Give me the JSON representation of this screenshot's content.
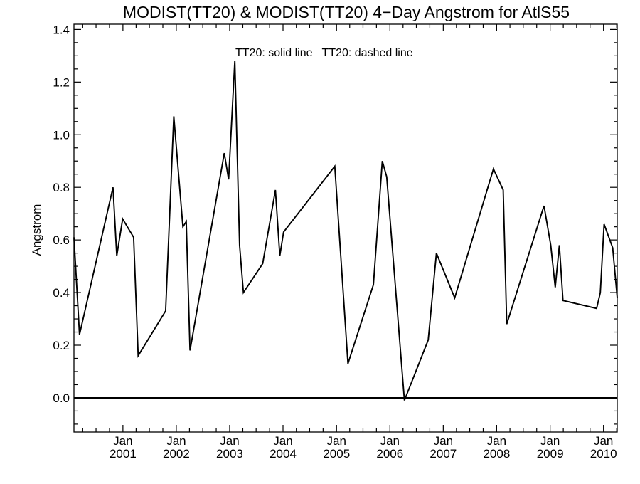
{
  "chart_data": {
    "type": "line",
    "title": "MODIST(TT20) & MODIST(TT20) 4−Day Angstrom for AtlS55",
    "xlabel": "",
    "ylabel": "Angstrom",
    "annotation": "TT20: solid line   TT20: dashed line",
    "xlim": [
      "2000-02-01",
      "2010-04-05"
    ],
    "ylim": [
      -0.13,
      1.42
    ],
    "y_ticks": [
      "0.0",
      "0.2",
      "0.4",
      "0.6",
      "0.8",
      "1.0",
      "1.2",
      "1.4"
    ],
    "x_ticks": [
      {
        "date": "2001-01-01",
        "month": "Jan",
        "year": "2001"
      },
      {
        "date": "2002-01-01",
        "month": "Jan",
        "year": "2002"
      },
      {
        "date": "2003-01-01",
        "month": "Jan",
        "year": "2003"
      },
      {
        "date": "2004-01-01",
        "month": "Jan",
        "year": "2004"
      },
      {
        "date": "2005-01-01",
        "month": "Jan",
        "year": "2005"
      },
      {
        "date": "2006-01-01",
        "month": "Jan",
        "year": "2006"
      },
      {
        "date": "2007-01-01",
        "month": "Jan",
        "year": "2007"
      },
      {
        "date": "2008-01-01",
        "month": "Jan",
        "year": "2008"
      },
      {
        "date": "2009-01-01",
        "month": "Jan",
        "year": "2009"
      },
      {
        "date": "2010-01-01",
        "month": "Jan",
        "year": "2010"
      }
    ],
    "reference_line": 0.0,
    "grid": false,
    "series": [
      {
        "style": "solid",
        "x": [
          "2000-02-01",
          "2000-03-10",
          "2000-10-25",
          "2000-11-20",
          "2000-12-30",
          "2001-03-15",
          "2001-04-15",
          "2001-10-20",
          "2001-12-15",
          "2002-02-15",
          "2002-03-10",
          "2002-04-05",
          "2002-11-25",
          "2002-12-25",
          "2003-02-05",
          "2003-03-10",
          "2003-04-05",
          "2003-08-15",
          "2003-11-10",
          "2003-12-10",
          "2004-01-05",
          "2004-12-20",
          "2005-03-20",
          "2005-09-10",
          "2005-10-15",
          "2005-11-10",
          "2005-12-10",
          "2006-04-10",
          "2006-09-20",
          "2006-11-15",
          "2007-03-20",
          "2007-12-10",
          "2008-02-15",
          "2008-03-10",
          "2008-11-20",
          "2009-01-05",
          "2009-02-05",
          "2009-03-05",
          "2009-03-30",
          "2009-11-15",
          "2009-12-10",
          "2010-01-05",
          "2010-03-05",
          "2010-04-05"
        ],
        "values": [
          0.61,
          0.24,
          0.8,
          0.54,
          0.68,
          0.61,
          0.16,
          0.33,
          1.07,
          0.65,
          0.67,
          0.18,
          0.93,
          0.83,
          1.28,
          0.58,
          0.4,
          0.51,
          0.79,
          0.54,
          0.63,
          0.88,
          0.13,
          0.43,
          0.7,
          0.9,
          0.84,
          -0.01,
          0.22,
          0.55,
          0.38,
          0.87,
          0.79,
          0.28,
          0.73,
          0.58,
          0.42,
          0.58,
          0.37,
          0.34,
          0.4,
          0.66,
          0.57,
          0.38
        ]
      }
    ]
  }
}
